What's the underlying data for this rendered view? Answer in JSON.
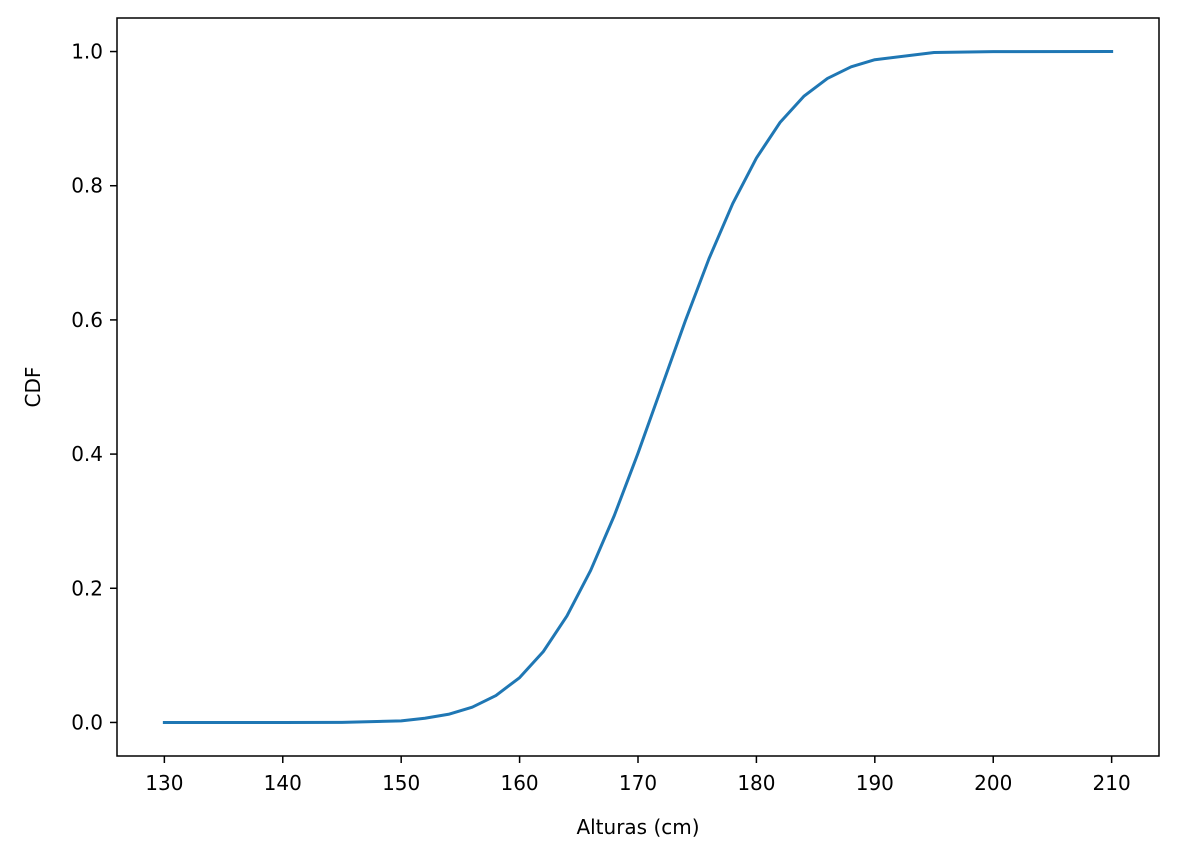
{
  "chart_data": {
    "type": "line",
    "title": "",
    "xlabel": "Alturas (cm)",
    "ylabel": "CDF",
    "xlim": [
      126,
      214
    ],
    "ylim": [
      -0.05,
      1.05
    ],
    "xticks": [
      130,
      140,
      150,
      160,
      170,
      180,
      190,
      200,
      210
    ],
    "xtick_labels": [
      "130",
      "140",
      "150",
      "160",
      "170",
      "180",
      "190",
      "200",
      "210"
    ],
    "yticks": [
      0.0,
      0.2,
      0.4,
      0.6,
      0.8,
      1.0
    ],
    "ytick_labels": [
      "0.0",
      "0.2",
      "0.4",
      "0.6",
      "0.8",
      "1.0"
    ],
    "grid": false,
    "series": [
      {
        "color": "#1f77b4",
        "x": [
          130,
          140,
          145,
          150,
          152,
          154,
          156,
          158,
          160,
          162,
          164,
          166,
          168,
          170,
          172,
          174,
          176,
          178,
          180,
          182,
          184,
          186,
          188,
          190,
          195,
          200,
          210
        ],
        "y": [
          0.0,
          0.0,
          0.0002,
          0.0023,
          0.0062,
          0.0122,
          0.0228,
          0.0401,
          0.0668,
          0.1056,
          0.1587,
          0.2266,
          0.3085,
          0.4013,
          0.5,
          0.5987,
          0.6915,
          0.7734,
          0.8413,
          0.8944,
          0.9332,
          0.9599,
          0.9772,
          0.9878,
          0.9985,
          0.9999,
          1.0
        ]
      }
    ]
  }
}
